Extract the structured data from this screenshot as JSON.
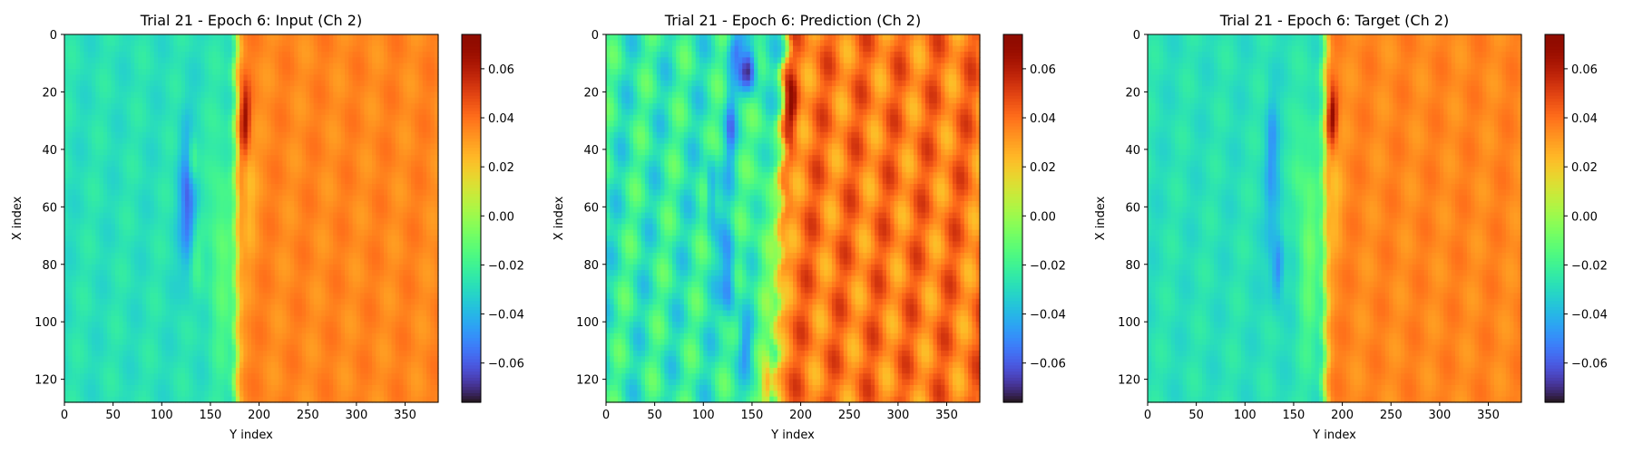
{
  "chart_data": [
    {
      "type": "heatmap",
      "title": "Trial 21 - Epoch 6: Input (Ch 2)",
      "xlabel": "Y index",
      "ylabel": "X index",
      "xlim": [
        0,
        384
      ],
      "ylim": [
        128,
        0
      ],
      "x_ticks": [
        0,
        50,
        100,
        150,
        200,
        250,
        300,
        350
      ],
      "y_ticks": [
        0,
        20,
        40,
        60,
        80,
        100,
        120
      ],
      "colormap": "turbo",
      "colorbar": {
        "range": [
          -0.076,
          0.074
        ],
        "ticks": [
          0.06,
          0.04,
          0.02,
          0.0,
          -0.02,
          -0.04,
          -0.06
        ],
        "tick_labels": [
          "0.06",
          "0.04",
          "0.02",
          "0.00",
          "−0.02",
          "−0.04",
          "−0.06"
        ]
      },
      "field": {
        "left_value": -0.028,
        "right_value": 0.035,
        "front_y": 176,
        "front_skew": 0.0,
        "front_wobble": 1.5,
        "texture": 0.003,
        "features": [
          {
            "x": 58,
            "y": 128,
            "rx": 24,
            "ry": 9,
            "value": -0.06
          },
          {
            "x": 42,
            "y": 133,
            "rx": 12,
            "ry": 6,
            "value": -0.02
          },
          {
            "x": 78,
            "y": 137,
            "rx": 12,
            "ry": 7,
            "value": -0.02
          },
          {
            "x": 31,
            "y": 186,
            "rx": 12,
            "ry": 5,
            "value": 0.072
          },
          {
            "x": 75,
            "y": 160,
            "rx": 38,
            "ry": 12,
            "value": -0.012
          },
          {
            "x": 55,
            "y": 190,
            "rx": 20,
            "ry": 7,
            "value": 0.025
          }
        ]
      }
    },
    {
      "type": "heatmap",
      "title": "Trial 21 - Epoch 6: Prediction (Ch 2)",
      "xlabel": "Y index",
      "ylabel": "X index",
      "xlim": [
        0,
        384
      ],
      "ylim": [
        128,
        0
      ],
      "x_ticks": [
        0,
        50,
        100,
        150,
        200,
        250,
        300,
        350
      ],
      "y_ticks": [
        0,
        20,
        40,
        60,
        80,
        100,
        120
      ],
      "colormap": "turbo",
      "colorbar": {
        "range": [
          -0.076,
          0.074
        ],
        "ticks": [
          0.06,
          0.04,
          0.02,
          0.0,
          -0.02,
          -0.04,
          -0.06
        ],
        "tick_labels": [
          "0.06",
          "0.04",
          "0.02",
          "0.00",
          "−0.02",
          "−0.04",
          "−0.06"
        ]
      },
      "field": {
        "left_value": -0.024,
        "right_value": 0.038,
        "front_y": 178,
        "front_skew": -0.1,
        "front_wobble": 4,
        "texture": 0.01,
        "features": [
          {
            "x": 12,
            "y": 147,
            "rx": 8,
            "ry": 9,
            "value": -0.075
          },
          {
            "x": 5,
            "y": 133,
            "rx": 6,
            "ry": 8,
            "value": -0.05
          },
          {
            "x": 33,
            "y": 128,
            "rx": 16,
            "ry": 5,
            "value": -0.045
          },
          {
            "x": 55,
            "y": 108,
            "rx": 12,
            "ry": 5,
            "value": -0.05
          },
          {
            "x": 85,
            "y": 126,
            "rx": 16,
            "ry": 7,
            "value": -0.055
          },
          {
            "x": 108,
            "y": 144,
            "rx": 8,
            "ry": 6,
            "value": -0.045
          },
          {
            "x": 122,
            "y": 165,
            "rx": 8,
            "ry": 5,
            "value": 0.04
          },
          {
            "x": 25,
            "y": 190,
            "rx": 10,
            "ry": 6,
            "value": 0.065
          },
          {
            "x": 70,
            "y": 162,
            "rx": 45,
            "ry": 12,
            "value": -0.012
          }
        ]
      }
    },
    {
      "type": "heatmap",
      "title": "Trial 21 - Epoch 6: Target (Ch 2)",
      "xlabel": "Y index",
      "ylabel": "X index",
      "xlim": [
        0,
        384
      ],
      "ylim": [
        128,
        0
      ],
      "x_ticks": [
        0,
        50,
        100,
        150,
        200,
        250,
        300,
        350
      ],
      "y_ticks": [
        0,
        20,
        40,
        60,
        80,
        100,
        120
      ],
      "colormap": "turbo",
      "colorbar": {
        "range": [
          -0.076,
          0.074
        ],
        "ticks": [
          0.06,
          0.04,
          0.02,
          0.0,
          -0.02,
          -0.04,
          -0.06
        ],
        "tick_labels": [
          "0.06",
          "0.04",
          "0.02",
          "0.00",
          "−0.02",
          "−0.04",
          "−0.06"
        ]
      },
      "field": {
        "left_value": -0.028,
        "right_value": 0.035,
        "front_y": 182,
        "front_skew": 0.0,
        "front_wobble": 1.5,
        "texture": 0.003,
        "features": [
          {
            "x": 45,
            "y": 128,
            "rx": 18,
            "ry": 5,
            "value": -0.055
          },
          {
            "x": 80,
            "y": 133,
            "rx": 10,
            "ry": 5,
            "value": -0.07
          },
          {
            "x": 62,
            "y": 130,
            "rx": 28,
            "ry": 8,
            "value": -0.04
          },
          {
            "x": 30,
            "y": 190,
            "rx": 10,
            "ry": 5,
            "value": 0.074
          },
          {
            "x": 50,
            "y": 155,
            "rx": 15,
            "ry": 7,
            "value": -0.018
          },
          {
            "x": 70,
            "y": 165,
            "rx": 38,
            "ry": 10,
            "value": -0.01
          },
          {
            "x": 55,
            "y": 192,
            "rx": 18,
            "ry": 7,
            "value": 0.025
          }
        ]
      }
    }
  ]
}
